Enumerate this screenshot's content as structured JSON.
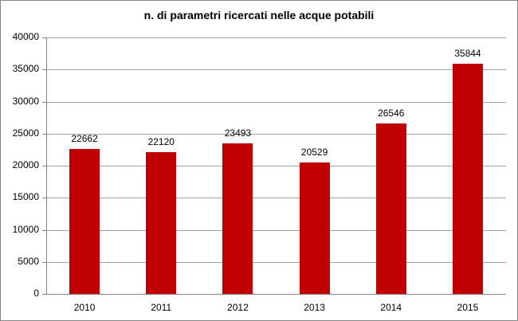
{
  "chart_data": {
    "type": "bar",
    "title": "n. di parametri ricercati nelle acque potabili",
    "categories": [
      "2010",
      "2011",
      "2012",
      "2013",
      "2014",
      "2015"
    ],
    "values": [
      22662,
      22120,
      23493,
      20529,
      26546,
      35844
    ],
    "data_labels": [
      "22662",
      "22120",
      "23493",
      "20529",
      "26546",
      "35844"
    ],
    "xlabel": "",
    "ylabel": "",
    "ylim": [
      0,
      40000
    ],
    "yticks": [
      "0",
      "5000",
      "10000",
      "15000",
      "20000",
      "25000",
      "30000",
      "35000",
      "40000"
    ],
    "grid": true,
    "legend": "none",
    "bar_color": "#c00000"
  }
}
